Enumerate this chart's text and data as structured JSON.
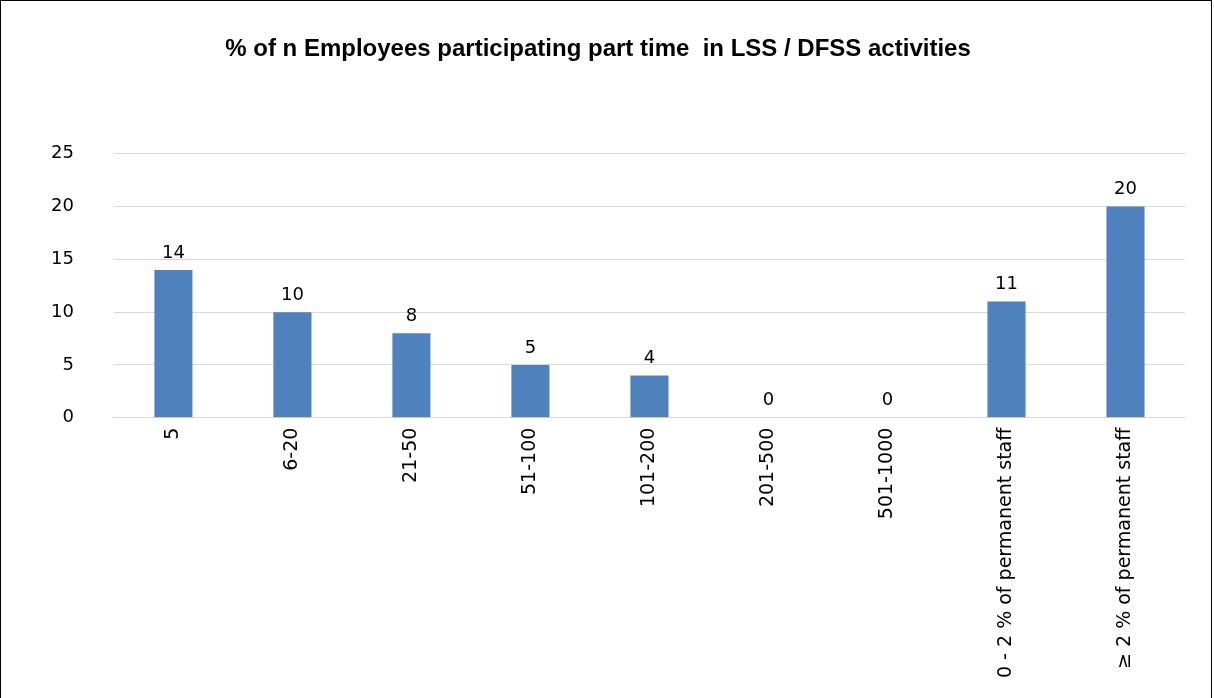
{
  "chart_data": {
    "type": "bar",
    "title": "% of n Employees participating part time  in LSS / DFSS activities",
    "categories": [
      "5",
      "6-20",
      "21-50",
      "51-100",
      "101-200",
      "201-500",
      "501-1000",
      "0 - 2 % of permanent staff",
      "≥ 2 % of permanent staff"
    ],
    "values": [
      14,
      10,
      8,
      5,
      4,
      0,
      0,
      11,
      20
    ],
    "color": "#4f81bd",
    "ylim": [
      0,
      25
    ],
    "yticks": [
      0,
      5,
      10,
      15,
      20,
      25
    ],
    "grid": "y",
    "data_labels": true
  }
}
